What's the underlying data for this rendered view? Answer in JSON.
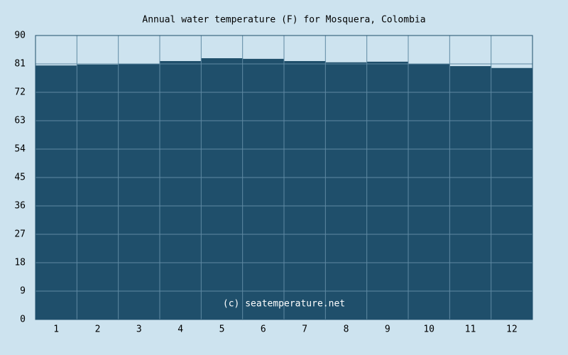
{
  "chart_data": {
    "type": "bar",
    "title": "Annual water temperature (F) for Mosquera, Colombia",
    "annotation": "(c) seatemperature.net",
    "categories": [
      "1",
      "2",
      "3",
      "4",
      "5",
      "6",
      "7",
      "8",
      "9",
      "10",
      "11",
      "12"
    ],
    "values": [
      80.5,
      80.8,
      81.0,
      81.9,
      82.8,
      82.6,
      81.9,
      81.5,
      81.7,
      81.0,
      80.3,
      79.7
    ],
    "color": "#1f4f6b",
    "ylim": [
      0,
      90
    ],
    "yticks": [
      0,
      9,
      18,
      27,
      36,
      45,
      54,
      63,
      72,
      81,
      90
    ],
    "grid": true
  }
}
